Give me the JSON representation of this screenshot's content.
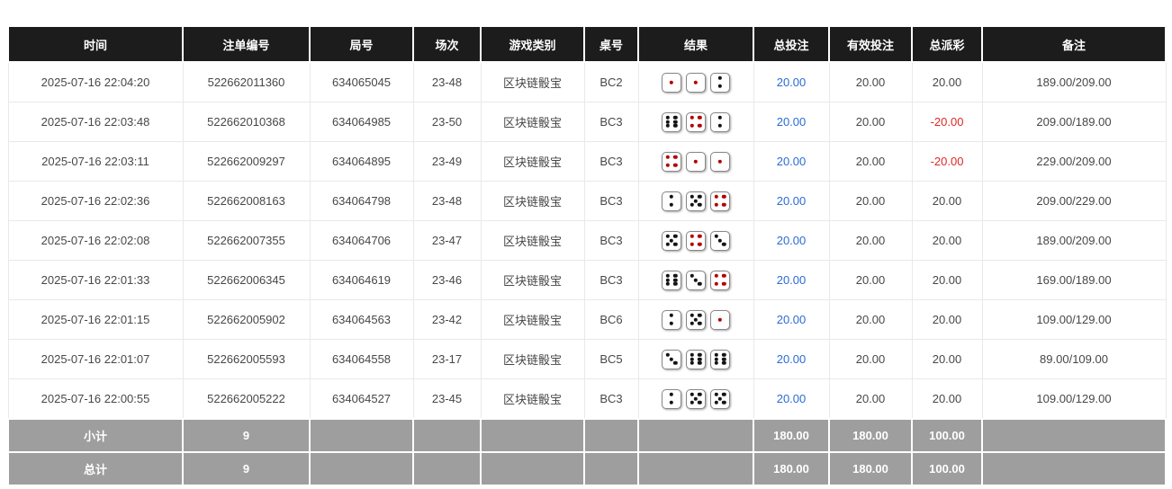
{
  "colors": {
    "header_bg": "#1c1c1c",
    "footer_bg": "#9e9e9e",
    "accent_blue": "#2a6bd5",
    "negative_red": "#e02626",
    "die_pip_red": "#b30000",
    "die_pip_black": "#141414"
  },
  "table": {
    "columns": [
      {
        "key": "time",
        "label": "时间"
      },
      {
        "key": "bet_id",
        "label": "注单编号"
      },
      {
        "key": "round_id",
        "label": "局号"
      },
      {
        "key": "session",
        "label": "场次"
      },
      {
        "key": "game_type",
        "label": "游戏类别"
      },
      {
        "key": "table_no",
        "label": "桌号"
      },
      {
        "key": "result",
        "label": "结果"
      },
      {
        "key": "total_bet",
        "label": "总投注"
      },
      {
        "key": "valid_bet",
        "label": "有效投注"
      },
      {
        "key": "total_payout",
        "label": "总派彩"
      },
      {
        "key": "remark",
        "label": "备注"
      }
    ],
    "rows": [
      {
        "time": "2025-07-16 22:04:20",
        "bet_id": "522662011360",
        "round_id": "634065045",
        "session": "23-48",
        "game_type": "区块链骰宝",
        "table_no": "BC2",
        "dice": [
          1,
          1,
          2
        ],
        "total_bet": "20.00",
        "valid_bet": "20.00",
        "total_payout": "20.00",
        "remark": "189.00/209.00"
      },
      {
        "time": "2025-07-16 22:03:48",
        "bet_id": "522662010368",
        "round_id": "634064985",
        "session": "23-50",
        "game_type": "区块链骰宝",
        "table_no": "BC3",
        "dice": [
          6,
          4,
          2
        ],
        "total_bet": "20.00",
        "valid_bet": "20.00",
        "total_payout": "-20.00",
        "remark": "209.00/189.00"
      },
      {
        "time": "2025-07-16 22:03:11",
        "bet_id": "522662009297",
        "round_id": "634064895",
        "session": "23-49",
        "game_type": "区块链骰宝",
        "table_no": "BC3",
        "dice": [
          4,
          1,
          1
        ],
        "total_bet": "20.00",
        "valid_bet": "20.00",
        "total_payout": "-20.00",
        "remark": "229.00/209.00"
      },
      {
        "time": "2025-07-16 22:02:36",
        "bet_id": "522662008163",
        "round_id": "634064798",
        "session": "23-48",
        "game_type": "区块链骰宝",
        "table_no": "BC3",
        "dice": [
          2,
          5,
          4
        ],
        "total_bet": "20.00",
        "valid_bet": "20.00",
        "total_payout": "20.00",
        "remark": "209.00/229.00"
      },
      {
        "time": "2025-07-16 22:02:08",
        "bet_id": "522662007355",
        "round_id": "634064706",
        "session": "23-47",
        "game_type": "区块链骰宝",
        "table_no": "BC3",
        "dice": [
          5,
          4,
          3
        ],
        "total_bet": "20.00",
        "valid_bet": "20.00",
        "total_payout": "20.00",
        "remark": "189.00/209.00"
      },
      {
        "time": "2025-07-16 22:01:33",
        "bet_id": "522662006345",
        "round_id": "634064619",
        "session": "23-46",
        "game_type": "区块链骰宝",
        "table_no": "BC3",
        "dice": [
          6,
          3,
          4
        ],
        "total_bet": "20.00",
        "valid_bet": "20.00",
        "total_payout": "20.00",
        "remark": "169.00/189.00"
      },
      {
        "time": "2025-07-16 22:01:15",
        "bet_id": "522662005902",
        "round_id": "634064563",
        "session": "23-42",
        "game_type": "区块链骰宝",
        "table_no": "BC6",
        "dice": [
          2,
          5,
          1
        ],
        "total_bet": "20.00",
        "valid_bet": "20.00",
        "total_payout": "20.00",
        "remark": "109.00/129.00"
      },
      {
        "time": "2025-07-16 22:01:07",
        "bet_id": "522662005593",
        "round_id": "634064558",
        "session": "23-17",
        "game_type": "区块链骰宝",
        "table_no": "BC5",
        "dice": [
          3,
          6,
          6
        ],
        "total_bet": "20.00",
        "valid_bet": "20.00",
        "total_payout": "20.00",
        "remark": "89.00/109.00"
      },
      {
        "time": "2025-07-16 22:00:55",
        "bet_id": "522662005222",
        "round_id": "634064527",
        "session": "23-45",
        "game_type": "区块链骰宝",
        "table_no": "BC3",
        "dice": [
          2,
          5,
          5
        ],
        "total_bet": "20.00",
        "valid_bet": "20.00",
        "total_payout": "20.00",
        "remark": "109.00/129.00"
      }
    ],
    "footer_rows": [
      {
        "label": "小计",
        "count": "9",
        "total_bet": "180.00",
        "valid_bet": "180.00",
        "total_payout": "100.00"
      },
      {
        "label": "总计",
        "count": "9",
        "total_bet": "180.00",
        "valid_bet": "180.00",
        "total_payout": "100.00"
      }
    ]
  }
}
